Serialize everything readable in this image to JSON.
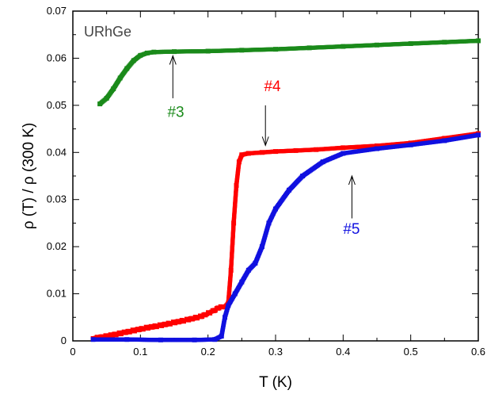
{
  "chart_data": {
    "type": "scatter",
    "title": "",
    "sample_label": "URhGe",
    "xlabel": "T (K)",
    "ylabel": "ρ (T) / ρ (300 K)",
    "xlim": [
      0,
      0.6
    ],
    "ylim": [
      0,
      0.07
    ],
    "x_ticks": [
      "0",
      "0.1",
      "0.2",
      "0.3",
      "0.4",
      "0.5",
      "0.6"
    ],
    "y_ticks": [
      "0",
      "0.01",
      "0.02",
      "0.03",
      "0.04",
      "0.05",
      "0.06",
      "0.07"
    ],
    "grid": false,
    "series": [
      {
        "name": "#3",
        "color": "#1a8a1a",
        "points": [
          [
            0.04,
            0.0503
          ],
          [
            0.05,
            0.0515
          ],
          [
            0.06,
            0.0535
          ],
          [
            0.07,
            0.0558
          ],
          [
            0.08,
            0.0578
          ],
          [
            0.09,
            0.0595
          ],
          [
            0.1,
            0.0606
          ],
          [
            0.11,
            0.0611
          ],
          [
            0.12,
            0.0613
          ],
          [
            0.15,
            0.0614
          ],
          [
            0.2,
            0.0615
          ],
          [
            0.25,
            0.0617
          ],
          [
            0.3,
            0.0619
          ],
          [
            0.35,
            0.0622
          ],
          [
            0.4,
            0.0625
          ],
          [
            0.45,
            0.0628
          ],
          [
            0.5,
            0.0631
          ],
          [
            0.55,
            0.0634
          ],
          [
            0.6,
            0.0637
          ]
        ]
      },
      {
        "name": "#4",
        "color": "#ff0000",
        "points": [
          [
            0.03,
            0.0005
          ],
          [
            0.05,
            0.001
          ],
          [
            0.07,
            0.0016
          ],
          [
            0.09,
            0.0022
          ],
          [
            0.11,
            0.0028
          ],
          [
            0.13,
            0.0033
          ],
          [
            0.15,
            0.0039
          ],
          [
            0.17,
            0.0045
          ],
          [
            0.19,
            0.0052
          ],
          [
            0.21,
            0.0065
          ],
          [
            0.215,
            0.007
          ],
          [
            0.22,
            0.0072
          ],
          [
            0.225,
            0.0072
          ],
          [
            0.23,
            0.008
          ],
          [
            0.234,
            0.015
          ],
          [
            0.238,
            0.025
          ],
          [
            0.242,
            0.033
          ],
          [
            0.246,
            0.038
          ],
          [
            0.25,
            0.0395
          ],
          [
            0.26,
            0.0398
          ],
          [
            0.28,
            0.04
          ],
          [
            0.3,
            0.0402
          ],
          [
            0.33,
            0.0404
          ],
          [
            0.36,
            0.0406
          ],
          [
            0.4,
            0.041
          ],
          [
            0.45,
            0.0414
          ],
          [
            0.5,
            0.042
          ],
          [
            0.55,
            0.043
          ],
          [
            0.6,
            0.044
          ]
        ]
      },
      {
        "name": "#5",
        "color": "#1010e0",
        "points": [
          [
            0.03,
            0.0003
          ],
          [
            0.08,
            0.0003
          ],
          [
            0.13,
            0.0002
          ],
          [
            0.18,
            0.0002
          ],
          [
            0.21,
            0.0003
          ],
          [
            0.22,
            0.001
          ],
          [
            0.225,
            0.005
          ],
          [
            0.23,
            0.0075
          ],
          [
            0.24,
            0.01
          ],
          [
            0.25,
            0.0125
          ],
          [
            0.26,
            0.015
          ],
          [
            0.27,
            0.0165
          ],
          [
            0.28,
            0.02
          ],
          [
            0.29,
            0.025
          ],
          [
            0.3,
            0.028
          ],
          [
            0.32,
            0.032
          ],
          [
            0.34,
            0.035
          ],
          [
            0.37,
            0.038
          ],
          [
            0.4,
            0.0398
          ],
          [
            0.45,
            0.0408
          ],
          [
            0.5,
            0.0416
          ],
          [
            0.55,
            0.0425
          ],
          [
            0.6,
            0.0437
          ]
        ]
      }
    ],
    "annotations": [
      {
        "text": "#3",
        "color": "#1a8a1a",
        "label_x": 0.14,
        "label_y": 0.0475,
        "arrow_from": [
          0.148,
          0.0515
        ],
        "arrow_to": [
          0.148,
          0.0605
        ]
      },
      {
        "text": "#4",
        "color": "#ff0000",
        "label_x": 0.283,
        "label_y": 0.053,
        "arrow_from": [
          0.285,
          0.05
        ],
        "arrow_to": [
          0.285,
          0.0415
        ]
      },
      {
        "text": "#5",
        "color": "#1010e0",
        "label_x": 0.4,
        "label_y": 0.0227,
        "arrow_from": [
          0.413,
          0.026
        ],
        "arrow_to": [
          0.413,
          0.035
        ]
      }
    ]
  }
}
